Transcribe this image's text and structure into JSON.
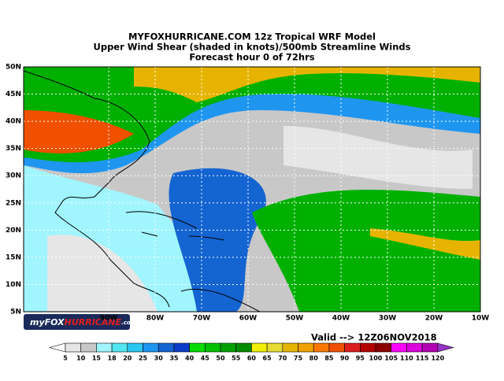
{
  "header": {
    "lines": [
      "MYFOXHURRICANE.COM 12z Tropical WRF Model",
      "Upper Wind Shear (shaded in knots)/500mb Streamline Winds",
      "Forecast hour 0 of 72hrs"
    ]
  },
  "map": {
    "lat_labels": [
      "50N",
      "45N",
      "40N",
      "35N",
      "30N",
      "25N",
      "20N",
      "15N",
      "10N",
      "5N"
    ],
    "lon_labels": [
      "90W",
      "80W",
      "70W",
      "60W",
      "50W",
      "40W",
      "30W",
      "20W",
      "10W"
    ],
    "valid": "Valid --> 12Z06NOV2018",
    "logo": [
      "my",
      "FOX",
      "HURRICANE",
      ".com"
    ]
  },
  "colorbar": {
    "labels": [
      5,
      10,
      15,
      18,
      20,
      25,
      30,
      35,
      40,
      45,
      50,
      55,
      60,
      65,
      70,
      75,
      80,
      85,
      90,
      95,
      100,
      105,
      110,
      115,
      120
    ],
    "colors": [
      "#ffffff",
      "#e6e6e6",
      "#c8c8c8",
      "#a0f5ff",
      "#50e6f0",
      "#28c8f0",
      "#1e96f0",
      "#1464d2",
      "#0a3cc8",
      "#00dc00",
      "#00c000",
      "#00a000",
      "#008c00",
      "#f0f000",
      "#e6dc32",
      "#e6b400",
      "#f0a000",
      "#fa7800",
      "#f05000",
      "#dc1e1e",
      "#b40000",
      "#8c0000",
      "#ff00ff",
      "#dc00dc",
      "#b400b4",
      "#9632c8"
    ]
  }
}
